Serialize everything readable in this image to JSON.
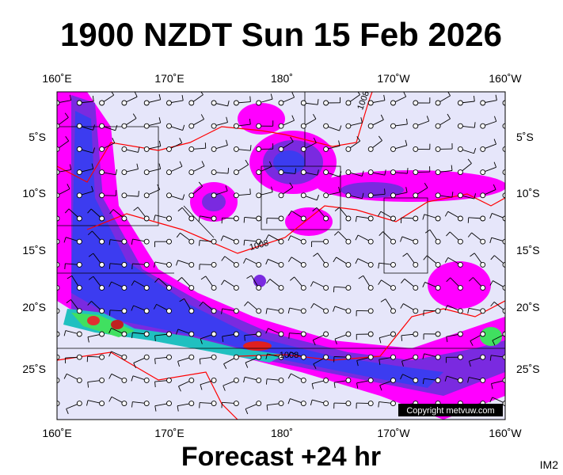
{
  "header": {
    "title": "1900 NZDT Sun 15 Feb 2026"
  },
  "map": {
    "longitude_labels": [
      "160˚E",
      "170˚E",
      "180˚",
      "170˚W",
      "160˚W"
    ],
    "latitude_labels": [
      "5˚S",
      "10˚S",
      "15˚S",
      "20˚S",
      "25˚S"
    ],
    "isobar_labels": [
      "1008",
      "1008",
      "1008"
    ],
    "copyright": "Copyright metvuw.com"
  },
  "footer": {
    "caption": "Forecast +24 hr",
    "image_id": "IM2"
  }
}
